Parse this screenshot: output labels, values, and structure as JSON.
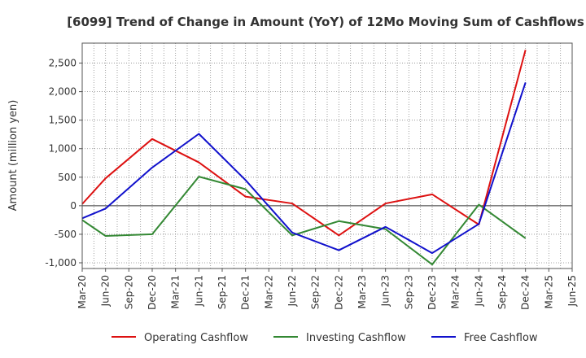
{
  "chart_data": {
    "type": "line",
    "title": "[6099]  Trend of Change in Amount (YoY) of 12Mo Moving Sum of Cashflows",
    "xlabel": "",
    "ylabel": "Amount (million yen)",
    "ylim": [
      -1100,
      2850
    ],
    "yticks": [
      -1000,
      -500,
      0,
      500,
      1000,
      1500,
      2000,
      2500
    ],
    "ytick_labels": [
      "-1,000",
      "-500",
      "0",
      "500",
      "1,000",
      "1,500",
      "2,000",
      "2,500"
    ],
    "categories": [
      "Mar-20",
      "Jun-20",
      "Sep-20",
      "Dec-20",
      "Mar-21",
      "Jun-21",
      "Sep-21",
      "Dec-21",
      "Mar-22",
      "Jun-22",
      "Sep-22",
      "Dec-22",
      "Mar-23",
      "Jun-23",
      "Sep-23",
      "Dec-23",
      "Mar-24",
      "Jun-24",
      "Sep-24",
      "Dec-24",
      "Mar-25",
      "Jun-25"
    ],
    "grid": true,
    "legend_position": "bottom",
    "series": [
      {
        "name": "Operating Cashflow",
        "color": "#dd1111",
        "values": [
          30,
          480,
          null,
          1170,
          null,
          760,
          null,
          160,
          null,
          40,
          null,
          -520,
          null,
          40,
          null,
          200,
          null,
          -330,
          null,
          2730,
          null,
          null
        ]
      },
      {
        "name": "Investing Cashflow",
        "color": "#338833",
        "values": [
          -250,
          -530,
          null,
          -500,
          null,
          510,
          null,
          290,
          null,
          -520,
          null,
          -270,
          null,
          -410,
          null,
          -1030,
          null,
          20,
          null,
          -570,
          null,
          null
        ]
      },
      {
        "name": "Free Cashflow",
        "color": "#1111cc",
        "values": [
          -220,
          -50,
          null,
          670,
          null,
          1260,
          null,
          450,
          null,
          -470,
          null,
          -780,
          null,
          -370,
          null,
          -830,
          null,
          -320,
          null,
          2160,
          null,
          null
        ]
      }
    ]
  }
}
